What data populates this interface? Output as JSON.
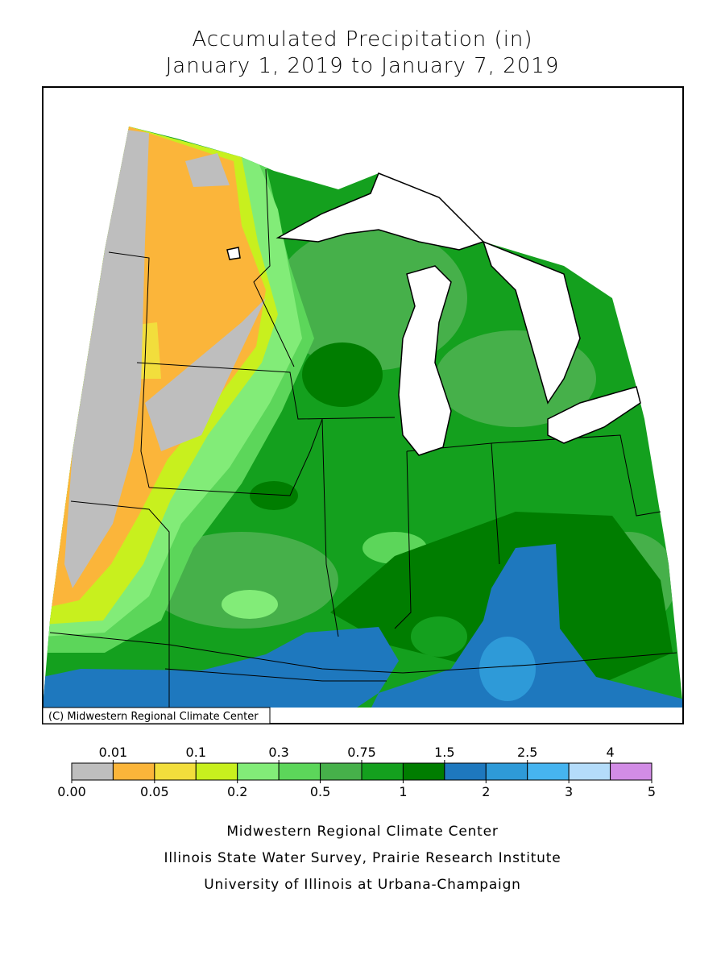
{
  "header": {
    "title_line1": "Accumulated Precipitation (in)",
    "title_line2": "January 1, 2019 to January 7, 2019"
  },
  "map": {
    "copyright": "(C) Midwestern Regional Climate Center"
  },
  "legend": {
    "breaks": [
      "0.00",
      "0.01",
      "0.05",
      "0.1",
      "0.2",
      "0.3",
      "0.5",
      "0.75",
      "1",
      "1.5",
      "2",
      "2.5",
      "3",
      "4",
      "5"
    ],
    "colors": [
      "#bebebe",
      "#fbb53a",
      "#f2de3c",
      "#c8f01e",
      "#82ec78",
      "#5cd65a",
      "#46b04a",
      "#14a01e",
      "#007d00",
      "#1e78be",
      "#2e9ad8",
      "#46b4f0",
      "#b4dcfa",
      "#d28ce6"
    ]
  },
  "footer": {
    "line1": "Midwestern Regional Climate Center",
    "line2": "Illinois State Water Survey, Prairie Research Institute",
    "line3": "University of Illinois at Urbana-Champaign"
  }
}
